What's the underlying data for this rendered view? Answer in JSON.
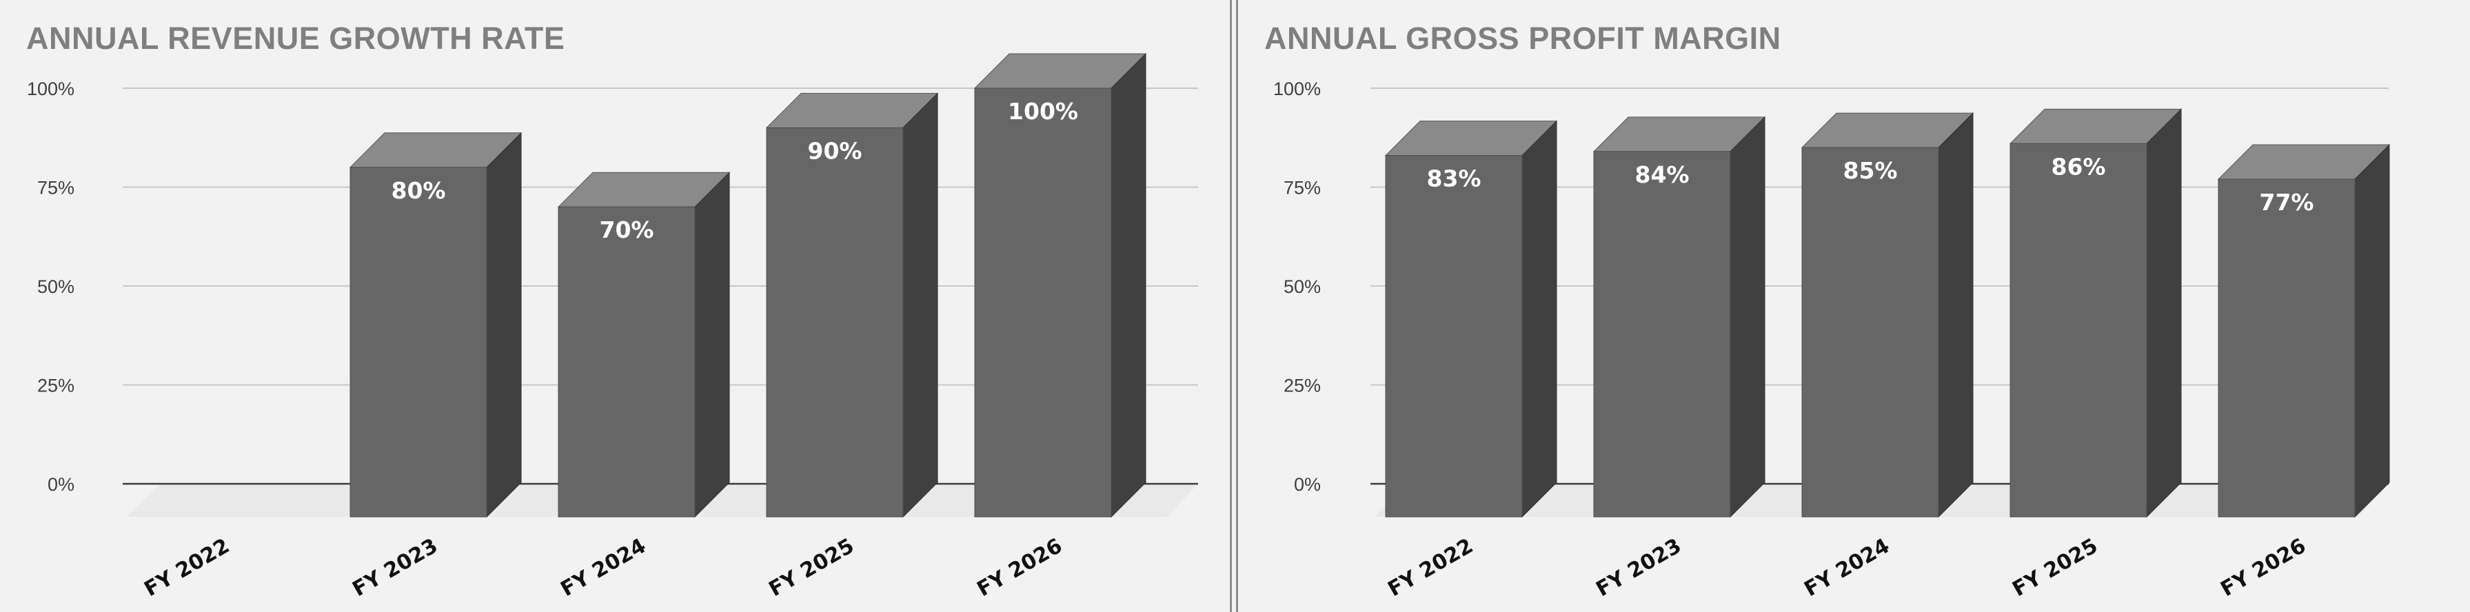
{
  "chart_data": [
    {
      "type": "bar",
      "title": "ANNUAL REVENUE GROWTH RATE",
      "categories": [
        "FY 2022",
        "FY 2023",
        "FY 2024",
        "FY 2025",
        "FY 2026"
      ],
      "values": [
        null,
        80,
        70,
        90,
        100
      ],
      "data_labels": [
        "",
        "80%",
        "70%",
        "90%",
        "100%"
      ],
      "y_ticks": [
        "0%",
        "25%",
        "50%",
        "75%",
        "100%"
      ],
      "ylim": [
        0,
        100
      ],
      "grid": true,
      "style": "3d-column",
      "colors": {
        "front": "#666666",
        "top": "#8a8a8a",
        "side": "#404040"
      }
    },
    {
      "type": "bar",
      "title": "ANNUAL GROSS PROFIT MARGIN",
      "categories": [
        "FY 2022",
        "FY 2023",
        "FY 2024",
        "FY 2025",
        "FY 2026"
      ],
      "values": [
        83,
        84,
        85,
        86,
        77
      ],
      "data_labels": [
        "83%",
        "84%",
        "85%",
        "86%",
        "77%"
      ],
      "y_ticks": [
        "0%",
        "25%",
        "50%",
        "75%",
        "100%"
      ],
      "ylim": [
        0,
        100
      ],
      "grid": true,
      "style": "3d-column",
      "colors": {
        "front": "#666666",
        "top": "#8a8a8a",
        "side": "#404040"
      }
    }
  ]
}
